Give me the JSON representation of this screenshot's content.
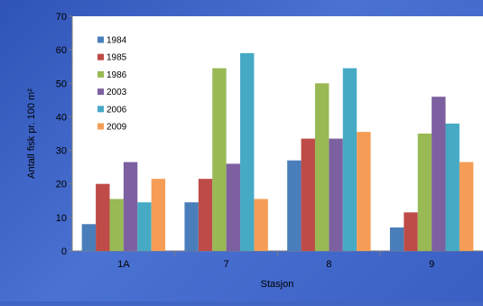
{
  "chart_data": {
    "type": "bar",
    "categories": [
      "1A",
      "7",
      "8",
      "9"
    ],
    "series": [
      {
        "name": "1984",
        "color": "#4a7ebb",
        "values": [
          8,
          14.5,
          27,
          7
        ]
      },
      {
        "name": "1985",
        "color": "#be4b48",
        "values": [
          20,
          21.5,
          33.5,
          11.5
        ]
      },
      {
        "name": "1986",
        "color": "#98b954",
        "values": [
          15.5,
          54.5,
          50,
          35
        ]
      },
      {
        "name": "2003",
        "color": "#7d60a0",
        "values": [
          26.5,
          26,
          33.5,
          46
        ]
      },
      {
        "name": "2006",
        "color": "#46aac5",
        "values": [
          14.5,
          59,
          54.5,
          38
        ]
      },
      {
        "name": "2009",
        "color": "#f59d56",
        "values": [
          21.5,
          15.5,
          35.5,
          26.5
        ]
      }
    ],
    "xlabel": "Stasjon",
    "ylabel": "Antall fisk pr. 100 m²",
    "ylim": [
      0,
      70
    ],
    "yticks": [
      0,
      10,
      20,
      30,
      40,
      50,
      60,
      70
    ],
    "grid": false,
    "legend": "top-left"
  }
}
